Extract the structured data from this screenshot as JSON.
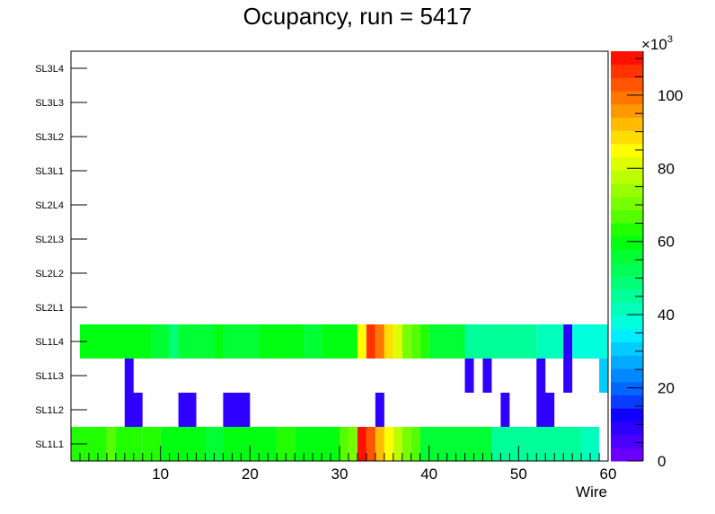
{
  "chart_data": {
    "type": "heatmap",
    "title": "Ocupancy, run = 5417",
    "xlabel": "Wire",
    "ylabel": "",
    "x_range": [
      0,
      60
    ],
    "x_ticks": [
      10,
      20,
      30,
      40,
      50,
      60
    ],
    "y_categories": [
      "SL1L1",
      "SL1L2",
      "SL1L3",
      "SL1L4",
      "SL2L1",
      "SL2L2",
      "SL2L3",
      "SL2L4",
      "SL3L1",
      "SL3L2",
      "SL3L3",
      "SL3L4"
    ],
    "colorbar": {
      "range": [
        0,
        112
      ],
      "multiplier_label": "×10",
      "multiplier_exponent": "3",
      "ticks": [
        0,
        20,
        40,
        60,
        80,
        100
      ]
    },
    "palette": [
      "#6a00ff",
      "#4c00ff",
      "#2d00ff",
      "#0f00ff",
      "#0a3cff",
      "#0066ff",
      "#0088ff",
      "#00aaff",
      "#00ccff",
      "#00eeff",
      "#00ffdd",
      "#00ffbb",
      "#00ff99",
      "#00ff77",
      "#00ff55",
      "#00ff33",
      "#00ff11",
      "#22ff00",
      "#55ff00",
      "#77ff00",
      "#99ff00",
      "#bbff00",
      "#ddff00",
      "#ffff00",
      "#ffdd00",
      "#ffbb00",
      "#ff9900",
      "#ff7700",
      "#ff5500",
      "#ff3300",
      "#ff1100"
    ],
    "bins": [
      {
        "row": "SL1L1",
        "runs": [
          [
            1,
            4,
            62
          ],
          [
            5,
            5,
            66
          ],
          [
            6,
            8,
            64
          ],
          [
            9,
            10,
            62
          ],
          [
            11,
            13,
            58
          ],
          [
            14,
            15,
            60
          ],
          [
            16,
            17,
            55
          ],
          [
            18,
            23,
            60
          ],
          [
            24,
            25,
            64
          ],
          [
            26,
            30,
            60
          ],
          [
            31,
            31,
            68
          ],
          [
            32,
            32,
            70
          ],
          [
            33,
            33,
            110
          ],
          [
            34,
            34,
            104
          ],
          [
            35,
            35,
            92
          ],
          [
            36,
            36,
            84
          ],
          [
            37,
            37,
            78
          ],
          [
            38,
            38,
            70
          ],
          [
            39,
            39,
            66
          ],
          [
            40,
            47,
            55
          ],
          [
            48,
            57,
            44
          ],
          [
            58,
            59,
            40
          ]
        ]
      },
      {
        "row": "SL1L2",
        "runs": [
          [
            7,
            8,
            8
          ],
          [
            13,
            14,
            8
          ],
          [
            18,
            20,
            8
          ],
          [
            35,
            35,
            8
          ],
          [
            49,
            49,
            8
          ],
          [
            53,
            54,
            8
          ]
        ]
      },
      {
        "row": "SL1L3",
        "runs": [
          [
            7,
            7,
            8
          ],
          [
            45,
            45,
            8
          ],
          [
            47,
            47,
            8
          ],
          [
            53,
            53,
            8
          ],
          [
            56,
            56,
            8
          ],
          [
            60,
            60,
            30
          ]
        ]
      },
      {
        "row": "SL1L4",
        "runs": [
          [
            2,
            9,
            58
          ],
          [
            10,
            11,
            55
          ],
          [
            12,
            12,
            50
          ],
          [
            13,
            16,
            55
          ],
          [
            17,
            17,
            60
          ],
          [
            18,
            21,
            55
          ],
          [
            22,
            26,
            58
          ],
          [
            27,
            28,
            55
          ],
          [
            29,
            32,
            58
          ],
          [
            33,
            33,
            84
          ],
          [
            34,
            34,
            108
          ],
          [
            35,
            35,
            100
          ],
          [
            36,
            36,
            90
          ],
          [
            37,
            37,
            80
          ],
          [
            38,
            38,
            72
          ],
          [
            39,
            39,
            66
          ],
          [
            40,
            40,
            62
          ],
          [
            41,
            44,
            55
          ],
          [
            45,
            52,
            45
          ],
          [
            53,
            55,
            40
          ],
          [
            56,
            56,
            8
          ],
          [
            57,
            61,
            38
          ]
        ]
      }
    ]
  }
}
